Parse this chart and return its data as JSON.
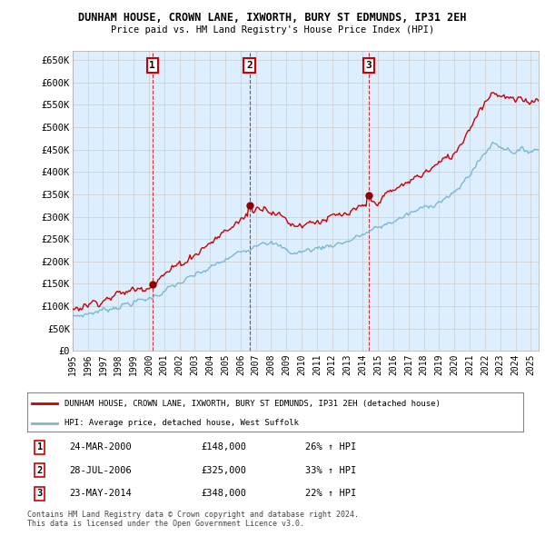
{
  "title": "DUNHAM HOUSE, CROWN LANE, IXWORTH, BURY ST EDMUNDS, IP31 2EH",
  "subtitle": "Price paid vs. HM Land Registry's House Price Index (HPI)",
  "ylim": [
    0,
    670000
  ],
  "yticks": [
    0,
    50000,
    100000,
    150000,
    200000,
    250000,
    300000,
    350000,
    400000,
    450000,
    500000,
    550000,
    600000,
    650000
  ],
  "ytick_labels": [
    "£0",
    "£50K",
    "£100K",
    "£150K",
    "£200K",
    "£250K",
    "£300K",
    "£350K",
    "£400K",
    "£450K",
    "£500K",
    "£550K",
    "£600K",
    "£650K"
  ],
  "legend_line1": "DUNHAM HOUSE, CROWN LANE, IXWORTH, BURY ST EDMUNDS, IP31 2EH (detached house)",
  "legend_line2": "HPI: Average price, detached house, West Suffolk",
  "sale1_label": "1",
  "sale1_date": "24-MAR-2000",
  "sale1_price": "£148,000",
  "sale1_hpi": "26% ↑ HPI",
  "sale1_year": 2000.23,
  "sale1_value": 148000,
  "sale2_label": "2",
  "sale2_date": "28-JUL-2006",
  "sale2_price": "£325,000",
  "sale2_hpi": "33% ↑ HPI",
  "sale2_year": 2006.58,
  "sale2_value": 325000,
  "sale3_label": "3",
  "sale3_date": "23-MAY-2014",
  "sale3_price": "£348,000",
  "sale3_hpi": "22% ↑ HPI",
  "sale3_year": 2014.39,
  "sale3_value": 348000,
  "hpi_color": "#7bb8d4",
  "price_color": "#cc0000",
  "sale_marker_color": "#8b0000",
  "grid_color": "#cccccc",
  "chart_bg": "#ddeeff",
  "background_color": "#ffffff",
  "footnote1": "Contains HM Land Registry data © Crown copyright and database right 2024.",
  "footnote2": "This data is licensed under the Open Government Licence v3.0."
}
